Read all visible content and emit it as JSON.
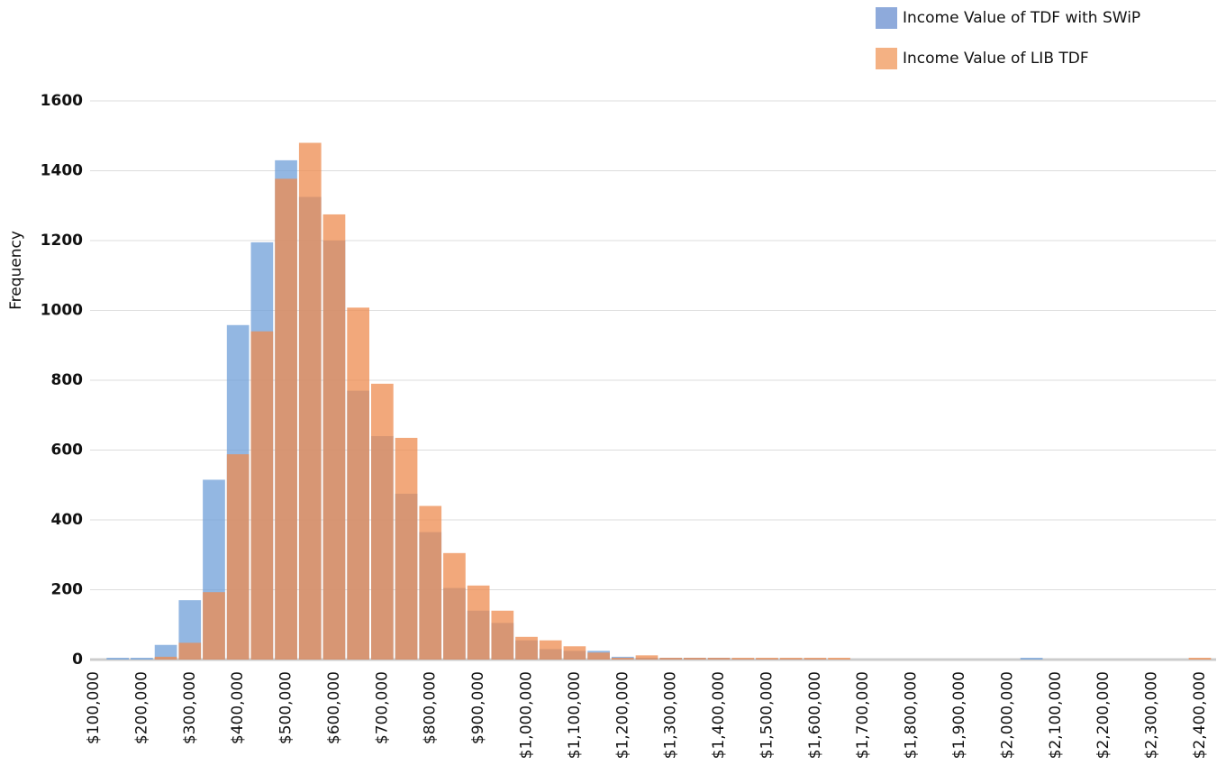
{
  "chart_data": {
    "type": "histogram",
    "y_label": "Frequency",
    "bins": [
      125000,
      175000,
      225000,
      275000,
      325000,
      375000,
      425000,
      475000,
      525000,
      575000,
      625000,
      675000,
      725000,
      775000,
      825000,
      875000,
      925000,
      975000,
      1025000,
      1075000,
      1125000,
      1175000,
      1225000,
      1275000,
      1325000,
      1375000,
      1425000,
      1475000,
      1525000,
      1575000,
      1625000,
      1675000,
      1725000,
      1775000,
      1825000,
      1875000,
      1925000,
      1975000,
      2025000,
      2075000,
      2125000,
      2175000,
      2225000,
      2275000,
      2325000,
      2375000,
      2425000
    ],
    "series": [
      {
        "name": "Income Value of TDF with SWiP",
        "color": "#6f9fd8",
        "legend_color": "#8eaadb",
        "values": [
          5,
          5,
          42,
          170,
          515,
          958,
          1195,
          1430,
          1325,
          1200,
          770,
          640,
          475,
          365,
          205,
          140,
          105,
          55,
          30,
          25,
          25,
          8,
          5,
          5,
          5,
          5,
          3,
          3,
          3,
          3,
          0,
          0,
          0,
          0,
          0,
          0,
          0,
          0,
          5,
          0,
          0,
          0,
          0,
          0,
          0,
          0
        ]
      },
      {
        "name": "Income Value of LIB TDF",
        "color": "#ed8b4f",
        "legend_color": "#f4b183",
        "values": [
          0,
          0,
          8,
          48,
          193,
          588,
          940,
          1377,
          1480,
          1275,
          1008,
          790,
          635,
          440,
          305,
          212,
          140,
          65,
          55,
          38,
          20,
          5,
          12,
          5,
          5,
          5,
          5,
          5,
          5,
          5,
          5,
          0,
          0,
          0,
          0,
          0,
          0,
          0,
          0,
          0,
          0,
          0,
          0,
          0,
          0,
          5
        ]
      }
    ],
    "xlim": [
      92500,
      2433750
    ],
    "xticks": [
      {
        "value": 100000,
        "label": "$100,000"
      },
      {
        "value": 200000,
        "label": "$200,000"
      },
      {
        "value": 300000,
        "label": "$300,000"
      },
      {
        "value": 400000,
        "label": "$400,000"
      },
      {
        "value": 500000,
        "label": "$500,000"
      },
      {
        "value": 600000,
        "label": "$600,000"
      },
      {
        "value": 700000,
        "label": "$700,000"
      },
      {
        "value": 800000,
        "label": "$800,000"
      },
      {
        "value": 900000,
        "label": "$900,000"
      },
      {
        "value": 1000000,
        "label": "$1,000,000"
      },
      {
        "value": 1100000,
        "label": "$1,100,000"
      },
      {
        "value": 1200000,
        "label": "$1,200,000"
      },
      {
        "value": 1300000,
        "label": "$1,300,000"
      },
      {
        "value": 1400000,
        "label": "$1,400,000"
      },
      {
        "value": 1500000,
        "label": "$1,500,000"
      },
      {
        "value": 1600000,
        "label": "$1,600,000"
      },
      {
        "value": 1700000,
        "label": "$1,700,000"
      },
      {
        "value": 1800000,
        "label": "$1,800,000"
      },
      {
        "value": 1900000,
        "label": "$1,900,000"
      },
      {
        "value": 2000000,
        "label": "$2,000,000"
      },
      {
        "value": 2100000,
        "label": "$2,100,000"
      },
      {
        "value": 2200000,
        "label": "$2,200,000"
      },
      {
        "value": 2300000,
        "label": "$2,300,000"
      },
      {
        "value": 2400000,
        "label": "$2,400,000"
      }
    ],
    "ylim": [
      0,
      1600
    ],
    "yticks": [
      0,
      200,
      400,
      600,
      800,
      1000,
      1200,
      1400,
      1600
    ],
    "grid": true,
    "legend": "top-right",
    "opacity": 0.75
  }
}
